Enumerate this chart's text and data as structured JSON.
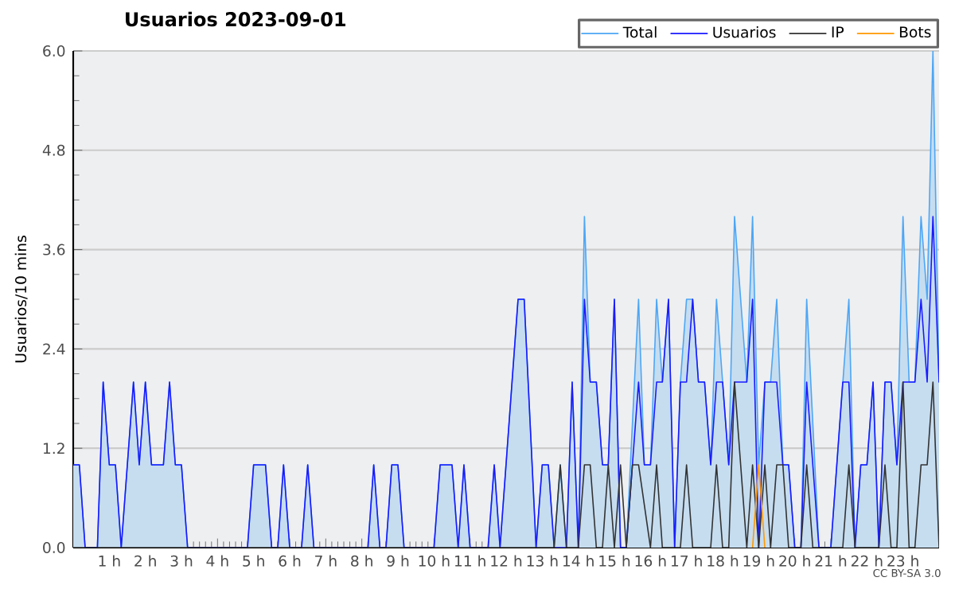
{
  "chart_data": {
    "type": "line",
    "title": "Usuarios  2023-09-01",
    "ylabel": "Usuarios/10 mins",
    "annotations": [
      "CC BY-SA 3.0"
    ],
    "xlim": [
      0,
      24
    ],
    "ylim": [
      0,
      6
    ],
    "xticks": [
      {
        "value": 1,
        "label": "1 h"
      },
      {
        "value": 2,
        "label": "2 h"
      },
      {
        "value": 3,
        "label": "3 h"
      },
      {
        "value": 4,
        "label": "4 h"
      },
      {
        "value": 5,
        "label": "5 h"
      },
      {
        "value": 6,
        "label": "6 h"
      },
      {
        "value": 7,
        "label": "7 h"
      },
      {
        "value": 8,
        "label": "8 h"
      },
      {
        "value": 9,
        "label": "9 h"
      },
      {
        "value": 10,
        "label": "10 h"
      },
      {
        "value": 11,
        "label": "11 h"
      },
      {
        "value": 12,
        "label": "12 h"
      },
      {
        "value": 13,
        "label": "13 h"
      },
      {
        "value": 14,
        "label": "14 h"
      },
      {
        "value": 15,
        "label": "15 h"
      },
      {
        "value": 16,
        "label": "16 h"
      },
      {
        "value": 17,
        "label": "17 h"
      },
      {
        "value": 18,
        "label": "18 h"
      },
      {
        "value": 19,
        "label": "19 h"
      },
      {
        "value": 20,
        "label": "20 h"
      },
      {
        "value": 21,
        "label": "21 h"
      },
      {
        "value": 22,
        "label": "22 h"
      },
      {
        "value": 23,
        "label": "23 h"
      }
    ],
    "yticks": [
      {
        "value": 0,
        "label": "0.0"
      },
      {
        "value": 1.2,
        "label": "1.2"
      },
      {
        "value": 2.4,
        "label": "2.4"
      },
      {
        "value": 3.6,
        "label": "3.6"
      },
      {
        "value": 4.8,
        "label": "4.8"
      },
      {
        "value": 6,
        "label": "6.0"
      }
    ],
    "grid": "y",
    "legend": "top right",
    "marker": "none",
    "line_style": "solid",
    "series": [
      {
        "name": "Total",
        "type": "area",
        "color": "#4da6f5",
        "x": [
          0,
          0.17,
          0.33,
          0.67,
          0.83,
          1.0,
          1.17,
          1.33,
          1.67,
          1.83,
          2.0,
          2.17,
          2.5,
          2.67,
          2.83,
          3.0,
          3.17,
          4.83,
          5.0,
          5.33,
          5.5,
          5.67,
          5.83,
          6.0,
          6.33,
          6.5,
          6.67,
          8.17,
          8.33,
          8.5,
          8.67,
          8.83,
          9.0,
          9.17,
          10.0,
          10.17,
          10.5,
          10.67,
          10.83,
          11.0,
          11.5,
          11.67,
          11.83,
          12.33,
          12.5,
          12.83,
          13.0,
          13.17,
          13.33,
          13.5,
          13.67,
          13.83,
          14.0,
          14.17,
          14.33,
          14.5,
          14.67,
          14.83,
          15.0,
          15.17,
          15.33,
          15.67,
          15.83,
          16.0,
          16.17,
          16.33,
          16.5,
          16.67,
          16.83,
          17.0,
          17.17,
          17.33,
          17.5,
          17.67,
          17.83,
          18.0,
          18.17,
          18.33,
          18.5,
          18.67,
          18.83,
          19.0,
          19.17,
          19.33,
          19.5,
          19.67,
          19.83,
          20.0,
          20.17,
          20.33,
          20.67,
          21.0,
          21.5,
          21.67,
          21.83,
          22.0,
          22.17,
          22.33,
          22.5,
          22.67,
          22.83,
          23.0,
          23.17,
          23.33,
          23.5,
          23.67,
          23.83,
          24.0
        ],
        "values": [
          1,
          1,
          0,
          0,
          2,
          1,
          1,
          0,
          2,
          1,
          2,
          1,
          1,
          2,
          1,
          1,
          0,
          0,
          1,
          1,
          0,
          0,
          1,
          0,
          0,
          1,
          0,
          0,
          1,
          0,
          0,
          1,
          1,
          0,
          0,
          1,
          1,
          0,
          1,
          0,
          0,
          1,
          0,
          3,
          3,
          0,
          1,
          1,
          0,
          1,
          0,
          2,
          0,
          4,
          2,
          2,
          1,
          1,
          3,
          0,
          0,
          3,
          1,
          1,
          3,
          2,
          3,
          0,
          2,
          3,
          3,
          2,
          2,
          1,
          3,
          2,
          1,
          4,
          3,
          2,
          4,
          1,
          2,
          2,
          3,
          1,
          1,
          0,
          0,
          3,
          0,
          0,
          3,
          0,
          1,
          1,
          2,
          0,
          2,
          2,
          1,
          4,
          2,
          2,
          4,
          3,
          6,
          2
        ]
      },
      {
        "name": "Usuarios",
        "color": "#1a1aff",
        "x": [
          0,
          0.17,
          0.33,
          0.67,
          0.83,
          1.0,
          1.17,
          1.33,
          1.67,
          1.83,
          2.0,
          2.17,
          2.5,
          2.67,
          2.83,
          3.0,
          3.17,
          4.83,
          5.0,
          5.33,
          5.5,
          5.67,
          5.83,
          6.0,
          6.33,
          6.5,
          6.67,
          8.17,
          8.33,
          8.5,
          8.67,
          8.83,
          9.0,
          9.17,
          10.0,
          10.17,
          10.5,
          10.67,
          10.83,
          11.0,
          11.5,
          11.67,
          11.83,
          12.33,
          12.5,
          12.83,
          13.0,
          13.17,
          13.33,
          13.67,
          13.83,
          14.0,
          14.17,
          14.33,
          14.5,
          14.67,
          14.83,
          15.0,
          15.17,
          15.33,
          15.67,
          15.83,
          16.0,
          16.17,
          16.33,
          16.5,
          16.67,
          16.83,
          17.0,
          17.17,
          17.33,
          17.5,
          17.67,
          17.83,
          18.0,
          18.17,
          18.33,
          18.67,
          18.83,
          19.0,
          19.17,
          19.5,
          19.67,
          19.83,
          20.0,
          20.17,
          20.33,
          20.67,
          21.0,
          21.33,
          21.5,
          21.67,
          21.83,
          22.0,
          22.17,
          22.33,
          22.5,
          22.67,
          22.83,
          23.0,
          23.33,
          23.5,
          23.67,
          23.83,
          24.0
        ],
        "values": [
          1,
          1,
          0,
          0,
          2,
          1,
          1,
          0,
          2,
          1,
          2,
          1,
          1,
          2,
          1,
          1,
          0,
          0,
          1,
          1,
          0,
          0,
          1,
          0,
          0,
          1,
          0,
          0,
          1,
          0,
          0,
          1,
          1,
          0,
          0,
          1,
          1,
          0,
          1,
          0,
          0,
          1,
          0,
          3,
          3,
          0,
          1,
          1,
          0,
          0,
          2,
          0,
          3,
          2,
          2,
          1,
          1,
          3,
          0,
          0,
          2,
          1,
          1,
          2,
          2,
          3,
          0,
          2,
          2,
          3,
          2,
          2,
          1,
          2,
          2,
          1,
          2,
          2,
          3,
          0,
          2,
          2,
          1,
          1,
          0,
          0,
          2,
          0,
          0,
          2,
          2,
          0,
          1,
          1,
          2,
          0,
          2,
          2,
          1,
          2,
          2,
          3,
          2,
          4,
          2
        ]
      },
      {
        "name": "IP",
        "color": "#333333",
        "x": [
          0,
          13.33,
          13.5,
          13.67,
          14.0,
          14.17,
          14.33,
          14.5,
          14.67,
          14.83,
          15.0,
          15.17,
          15.33,
          15.5,
          15.67,
          16.0,
          16.17,
          16.33,
          16.83,
          17.0,
          17.17,
          17.67,
          17.83,
          18.0,
          18.17,
          18.33,
          18.67,
          18.83,
          19.0,
          19.17,
          19.33,
          19.5,
          19.67,
          19.83,
          20.17,
          20.33,
          20.5,
          21.33,
          21.5,
          21.67,
          22.33,
          22.5,
          22.67,
          22.83,
          23.0,
          23.17,
          23.33,
          23.5,
          23.67,
          23.83,
          24.0
        ],
        "values": [
          0,
          0,
          1,
          0,
          0,
          1,
          1,
          0,
          0,
          1,
          0,
          1,
          0,
          1,
          1,
          0,
          1,
          0,
          0,
          1,
          0,
          0,
          1,
          0,
          0,
          2,
          0,
          1,
          0,
          1,
          0,
          1,
          1,
          0,
          0,
          1,
          0,
          0,
          1,
          0,
          0,
          1,
          0,
          0,
          2,
          0,
          0,
          1,
          1,
          2,
          0
        ]
      },
      {
        "name": "Bots",
        "color": "#ff9900",
        "x": [
          18.83,
          19.0,
          19.17
        ],
        "values": [
          0,
          1,
          0
        ]
      }
    ]
  }
}
